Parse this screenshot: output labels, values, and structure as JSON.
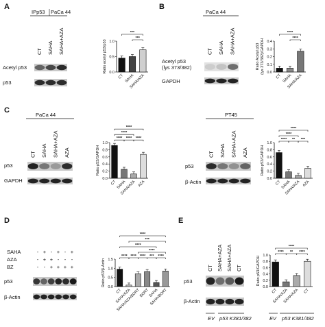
{
  "panels": {
    "A": {
      "label": "A",
      "headers": [
        "IPp53",
        "PaCa 44"
      ],
      "lanes": [
        "CT",
        "SAHA",
        "SAHA+AZA"
      ],
      "rows": [
        "Acetyl p53",
        "p53"
      ],
      "chart_data": {
        "type": "bar",
        "ylabel": "Ratio acetyl p53/p53",
        "ylim": [
          0,
          1.0
        ],
        "yticks": [
          "0.0",
          "0.5",
          "1.0"
        ],
        "categories": [
          "CT",
          "SAHA",
          "SAHA/AZA"
        ],
        "values": [
          0.45,
          0.5,
          0.72
        ],
        "bar_colors": [
          "#111111",
          "#444444",
          "#cfcfcf"
        ],
        "significance": [
          {
            "from": 0,
            "to": 2,
            "label": "***"
          },
          {
            "from": 1,
            "to": 2,
            "label": "***"
          }
        ]
      }
    },
    "B": {
      "label": "B",
      "headers": [
        "PaCa 44"
      ],
      "lanes": [
        "CT",
        "SAHA",
        "SAHA+AZA"
      ],
      "rows": [
        "Acetyl p53\n(lys 373/382)",
        "GAPDH"
      ],
      "chart_data": {
        "type": "bar",
        "ylabel": "Ratio Acetyl p53\n(lys 373/382)/GAPDH",
        "ylim": [
          0,
          0.4
        ],
        "yticks": [
          "0.0",
          "0.1",
          "0.2",
          "0.3",
          "0.4"
        ],
        "categories": [
          "CT",
          "SAHA",
          "SAHA/AZA"
        ],
        "values": [
          0.05,
          0.05,
          0.27
        ],
        "bar_colors": [
          "#111111",
          "#888888",
          "#777777"
        ],
        "significance": [
          {
            "from": 0,
            "to": 2,
            "label": "****"
          },
          {
            "from": 1,
            "to": 2,
            "label": "****"
          }
        ]
      }
    },
    "C1": {
      "label": "C",
      "headers": [
        "PaCa 44"
      ],
      "lanes": [
        "CT",
        "SAHA",
        "SAHA+AZA",
        "AZA"
      ],
      "rows": [
        "p53",
        "GAPDH"
      ],
      "chart_data": {
        "type": "bar",
        "ylabel": "Ratio p53/GAPDH",
        "ylim": [
          0,
          1.0
        ],
        "yticks": [
          "0.0",
          "0.2",
          "0.4",
          "0.6",
          "0.8",
          "1.0"
        ],
        "categories": [
          "CT",
          "SAHA",
          "SAHA/AZA",
          "AZA"
        ],
        "values": [
          0.92,
          0.25,
          0.12,
          0.67
        ],
        "bar_colors": [
          "#111111",
          "#777777",
          "#aaaaaa",
          "#dddddd"
        ],
        "significance": [
          {
            "from": 0,
            "to": 3,
            "label": "****"
          },
          {
            "from": 0,
            "to": 2,
            "label": "****"
          },
          {
            "from": 1,
            "to": 2,
            "label": "****"
          },
          {
            "from": 0,
            "to": 1,
            "label": "****"
          },
          {
            "from": 2,
            "to": 3,
            "label": "****"
          }
        ]
      }
    },
    "C2": {
      "headers": [
        "PT45"
      ],
      "lanes": [
        "CT",
        "SAHA",
        "SAHA+AZA",
        "AZA"
      ],
      "rows": [
        "p53",
        "β-Actin"
      ],
      "chart_data": {
        "type": "bar",
        "ylabel": "Ratio p53/GAPDH",
        "ylim": [
          0,
          1.0
        ],
        "yticks": [
          "0.0",
          "0.2",
          "0.4",
          "0.6",
          "0.8",
          "1.0"
        ],
        "categories": [
          "CT",
          "SAHA",
          "SAHA/AZA",
          "AZA"
        ],
        "values": [
          0.72,
          0.18,
          0.08,
          0.28
        ],
        "bar_colors": [
          "#111111",
          "#777777",
          "#aaaaaa",
          "#dddddd"
        ],
        "significance": [
          {
            "from": 0,
            "to": 3,
            "label": "****"
          },
          {
            "from": 0,
            "to": 2,
            "label": "****"
          },
          {
            "from": 1,
            "to": 2,
            "label": "**"
          },
          {
            "from": 0,
            "to": 1,
            "label": "****"
          },
          {
            "from": 2,
            "to": 3,
            "label": "***"
          }
        ]
      }
    },
    "D": {
      "label": "D",
      "treatments": [
        {
          "name": "SAHA",
          "signs": [
            "-",
            "+",
            "-",
            "+",
            "-",
            "+"
          ]
        },
        {
          "name": "AZA",
          "signs": [
            "-",
            "+",
            "+",
            "-",
            "-",
            "-"
          ]
        },
        {
          "name": "BZ",
          "signs": [
            "-",
            "-",
            "+",
            "+",
            "+",
            "+"
          ]
        }
      ],
      "rows": [
        "p53",
        "β-Actin"
      ],
      "chart_data": {
        "type": "bar",
        "ylabel": "Ratio p53/β-Actin",
        "ylim": [
          0,
          1.5
        ],
        "yticks": [
          "0.0",
          "0.5",
          "1.0",
          "1.5"
        ],
        "categories": [
          "CT",
          "SAHA/AZA",
          "SAHA/AZA/BORT",
          "BORT",
          "SAHA",
          "SAHA/BORT"
        ],
        "values": [
          0.95,
          0.08,
          0.7,
          0.82,
          0.22,
          0.85
        ],
        "bar_colors": [
          "#111111",
          "#cccccc",
          "#aaaaaa",
          "#888888",
          "#555555",
          "#999999"
        ],
        "significance": [
          {
            "from": 0,
            "to": 5,
            "label": "****"
          },
          {
            "from": 0,
            "to": 4,
            "label": "****"
          },
          {
            "from": 1,
            "to": 5,
            "label": "***"
          },
          {
            "from": 2,
            "to": 5,
            "label": "****"
          },
          {
            "from": 0,
            "to": 1,
            "label": "****"
          },
          {
            "from": 1,
            "to": 2,
            "label": "****"
          },
          {
            "from": 2,
            "to": 3,
            "label": "****"
          },
          {
            "from": 3,
            "to": 4,
            "label": "***"
          },
          {
            "from": 4,
            "to": 5,
            "label": "****"
          }
        ]
      }
    },
    "E": {
      "label": "E",
      "lanes": [
        "CT",
        "SAHA+AZA",
        "SAHA+AZA",
        "CT"
      ],
      "rows": [
        "p53",
        "β-Actin"
      ],
      "groups": [
        "EV",
        "p53 K381/382"
      ],
      "chart_data": {
        "type": "bar",
        "ylabel": "Ratio p53/GAPDH",
        "ylim": [
          0,
          1.0
        ],
        "yticks": [
          "0.0",
          "0.2",
          "0.4",
          "0.6",
          "0.8",
          "1.0"
        ],
        "categories": [
          "CT",
          "SAHA/AZA",
          "SAHA/AZA",
          "CT"
        ],
        "groups": [
          "EV",
          "p53 K381/382"
        ],
        "values": [
          0.78,
          0.15,
          0.35,
          0.8
        ],
        "bar_colors": [
          "#111111",
          "#777777",
          "#aaaaaa",
          "#dddddd"
        ],
        "significance": [
          {
            "from": 0,
            "to": 3,
            "label": "****"
          },
          {
            "from": 0,
            "to": 1,
            "label": "****"
          },
          {
            "from": 1,
            "to": 2,
            "label": "**"
          },
          {
            "from": 2,
            "to": 3,
            "label": "****"
          }
        ]
      }
    }
  }
}
